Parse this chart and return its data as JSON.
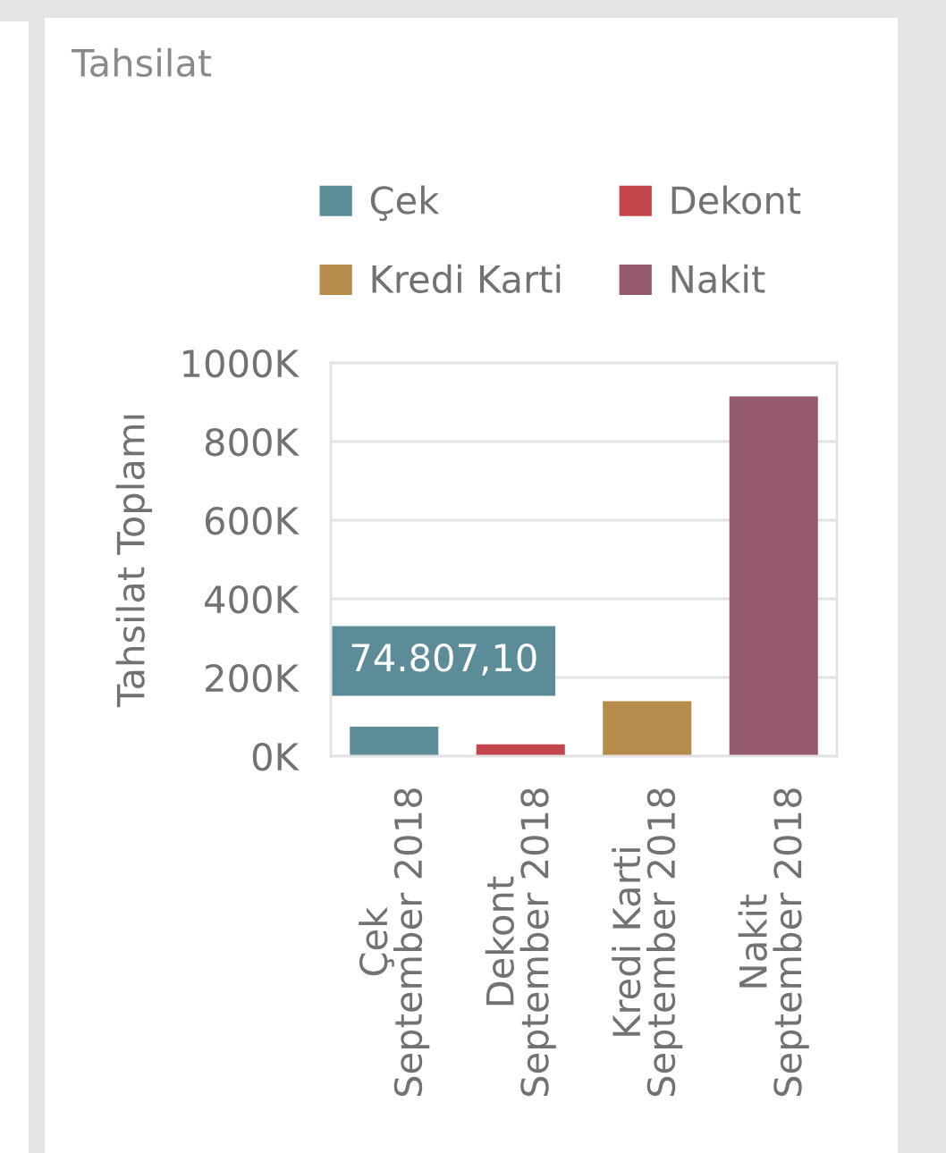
{
  "chart_data": {
    "type": "bar",
    "title": "Tahsilat",
    "ylabel": "Tahsilat Toplamı",
    "categories": [
      "Çek\nSeptember 2018",
      "Dekont\nSeptember 2018",
      "Kredi Karti\nSeptember 2018",
      "Nakit\nSeptember 2018"
    ],
    "series": [
      {
        "name": "Çek",
        "color": "#5b8c97",
        "values": [
          74807.1,
          null,
          null,
          null
        ],
        "value_labels": [
          "74.807,10",
          null,
          null,
          null
        ]
      },
      {
        "name": "Dekont",
        "color": "#c4464d",
        "values": [
          null,
          30000,
          null,
          null
        ]
      },
      {
        "name": "Kredi Karti",
        "color": "#b68b4c",
        "values": [
          null,
          null,
          140000,
          null
        ]
      },
      {
        "name": "Nakit",
        "color": "#955a6d",
        "values": [
          null,
          null,
          null,
          915000
        ]
      }
    ],
    "stacked": true,
    "ylim": [
      0,
      1000000
    ],
    "yticks": [
      {
        "value": 0,
        "label": "0K"
      },
      {
        "value": 200000,
        "label": "200K"
      },
      {
        "value": 400000,
        "label": "400K"
      },
      {
        "value": 600000,
        "label": "600K"
      },
      {
        "value": 800000,
        "label": "800K"
      },
      {
        "value": 1000000,
        "label": "1000K"
      }
    ],
    "grid": "y",
    "legend": "top"
  }
}
